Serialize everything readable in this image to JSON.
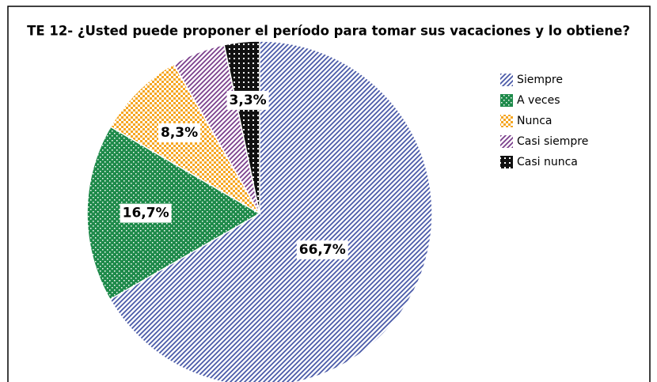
{
  "chart_data": {
    "type": "pie",
    "title": "TE 12- ¿Usted puede proponer el período para tomar sus vacaciones y lo obtiene?",
    "categories": [
      "Siempre",
      "A veces",
      "Nunca",
      "Casi siempre",
      "Casi nunca"
    ],
    "values": [
      66.7,
      16.7,
      8.3,
      5.0,
      3.3
    ],
    "value_labels": [
      "66,7%",
      "16,7%",
      "8,3%",
      null,
      "3,3%"
    ],
    "colors": [
      "#4a5aa8",
      "#1e8a4a",
      "#f5a623",
      "#7b3f8c",
      "#111111"
    ],
    "patterns": [
      "diagonal",
      "dots",
      "checker",
      "diagonal",
      "grid"
    ],
    "legend": "right"
  }
}
